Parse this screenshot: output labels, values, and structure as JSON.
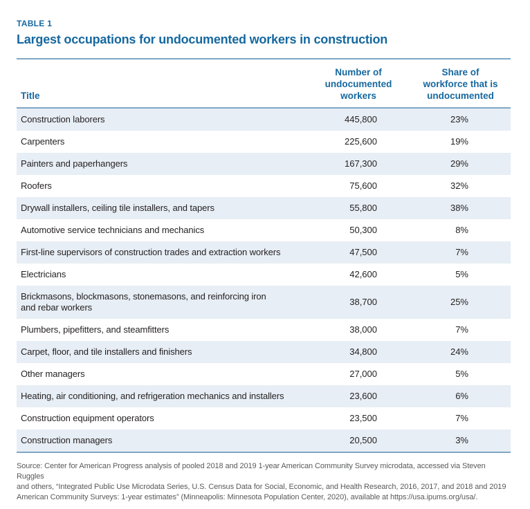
{
  "header": {
    "eyebrow": "TABLE 1",
    "title": "Largest occupations for undocumented workers in construction"
  },
  "table": {
    "columns": {
      "title": "Title",
      "number": "Number of\nundocumented\nworkers",
      "share": "Share of\nworkforce that is\nundocumented"
    },
    "rows": [
      {
        "title": "Construction laborers",
        "number": "445,800",
        "share": "23%"
      },
      {
        "title": "Carpenters",
        "number": "225,600",
        "share": "19%"
      },
      {
        "title": "Painters and paperhangers",
        "number": "167,300",
        "share": "29%"
      },
      {
        "title": "Roofers",
        "number": "75,600",
        "share": "32%"
      },
      {
        "title": "Drywall installers, ceiling tile installers, and tapers",
        "number": "55,800",
        "share": "38%"
      },
      {
        "title": "Automotive service technicians and mechanics",
        "number": "50,300",
        "share": "8%"
      },
      {
        "title": "First-line supervisors of construction trades and extraction workers",
        "number": "47,500",
        "share": "7%"
      },
      {
        "title": "Electricians",
        "number": "42,600",
        "share": "5%"
      },
      {
        "title": "Brickmasons, blockmasons, stonemasons, and reinforcing iron\nand rebar workers",
        "number": "38,700",
        "share": "25%"
      },
      {
        "title": "Plumbers, pipefitters, and steamfitters",
        "number": "38,000",
        "share": "7%"
      },
      {
        "title": "Carpet, floor, and tile installers and finishers",
        "number": "34,800",
        "share": "24%"
      },
      {
        "title": "Other managers",
        "number": "27,000",
        "share": "5%"
      },
      {
        "title": "Heating, air conditioning, and refrigeration mechanics and installers",
        "number": "23,600",
        "share": "6%"
      },
      {
        "title": "Construction equipment operators",
        "number": "23,500",
        "share": "7%"
      },
      {
        "title": "Construction managers",
        "number": "20,500",
        "share": "3%"
      }
    ]
  },
  "source_note": "Source: Center for American Progress analysis of pooled 2018 and 2019 1-year American Community Survey microdata, accessed via Steven Ruggles\nand others, “Integrated Public Use Microdata Series, U.S. Census Data for Social, Economic, and Health Research, 2016, 2017, and 2018 and 2019\nAmerican Community Surveys: 1-year estimates” (Minneapolis: Minnesota Population Center, 2020), available at https://usa.ipums.org/usa/.",
  "colors": {
    "accent_blue": "#16689f",
    "rule_blue": "#7fa6c5",
    "row_stripe": "#e7eef5",
    "body_text": "#231f20",
    "source_text": "#58595b"
  },
  "chart_data": {
    "type": "table",
    "title": "Largest occupations for undocumented workers in construction",
    "columns": [
      "Title",
      "Number of undocumented workers",
      "Share of workforce that is undocumented"
    ],
    "rows": [
      [
        "Construction laborers",
        445800,
        "23%"
      ],
      [
        "Carpenters",
        225600,
        "19%"
      ],
      [
        "Painters and paperhangers",
        167300,
        "29%"
      ],
      [
        "Roofers",
        75600,
        "32%"
      ],
      [
        "Drywall installers, ceiling tile installers, and tapers",
        55800,
        "38%"
      ],
      [
        "Automotive service technicians and mechanics",
        50300,
        "8%"
      ],
      [
        "First-line supervisors of construction trades and extraction workers",
        47500,
        "7%"
      ],
      [
        "Electricians",
        42600,
        "5%"
      ],
      [
        "Brickmasons, blockmasons, stonemasons, and reinforcing iron and rebar workers",
        38700,
        "25%"
      ],
      [
        "Plumbers, pipefitters, and steamfitters",
        38000,
        "7%"
      ],
      [
        "Carpet, floor, and tile installers and finishers",
        34800,
        "24%"
      ],
      [
        "Other managers",
        27000,
        "5%"
      ],
      [
        "Heating, air conditioning, and refrigeration mechanics and installers",
        23600,
        "6%"
      ],
      [
        "Construction equipment operators",
        23500,
        "7%"
      ],
      [
        "Construction managers",
        20500,
        "3%"
      ]
    ]
  }
}
